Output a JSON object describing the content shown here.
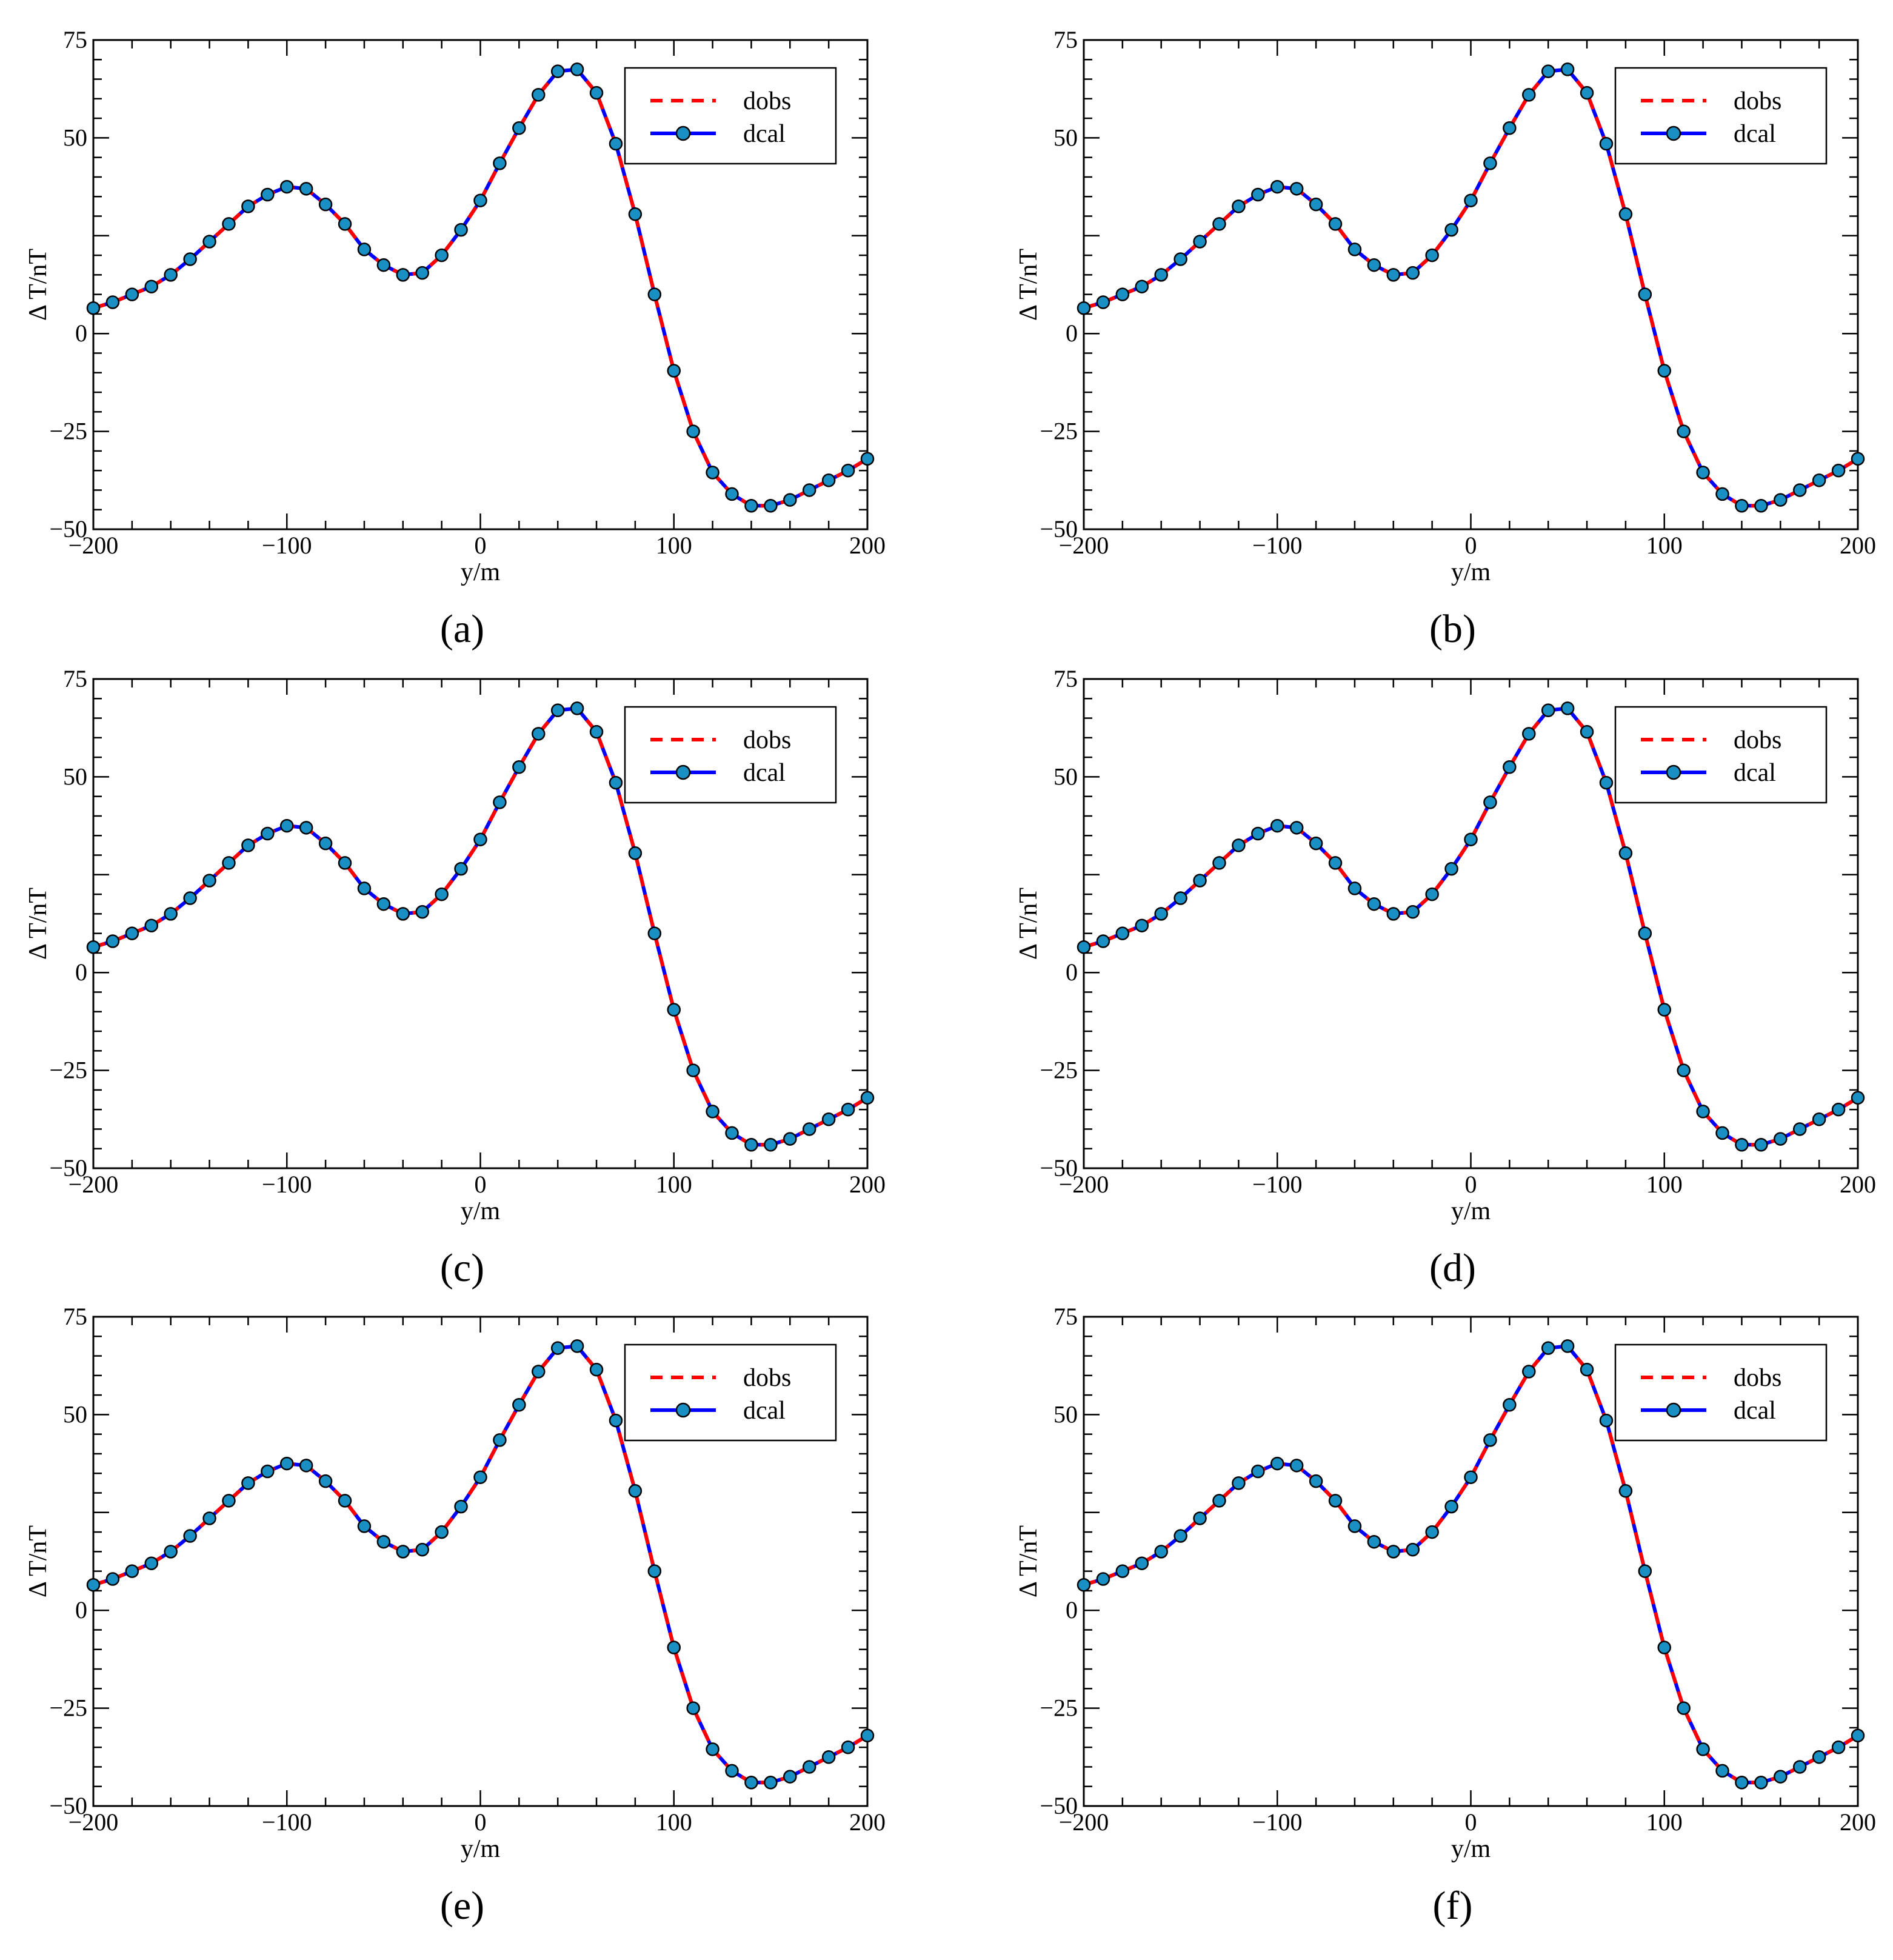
{
  "chart_data": [
    {
      "panel_label": "(a)",
      "type": "line",
      "xlabel": "y/m",
      "ylabel": "Δ T/nT",
      "xlim": [
        -200,
        200
      ],
      "ylim": [
        -50,
        75
      ],
      "xticks": [
        -200,
        -100,
        0,
        100,
        200
      ],
      "yticks": [
        -50,
        -25,
        0,
        25,
        50,
        75
      ],
      "ytick_labels": [
        "−50",
        "−25",
        "0",
        "",
        "50",
        "75"
      ],
      "xtick_labels": [
        "−200",
        "−100",
        "0",
        "100",
        "200"
      ],
      "legend_position": "top-right",
      "x": [
        -200,
        -190,
        -180,
        -170,
        -160,
        -150,
        -140,
        -130,
        -120,
        -110,
        -100,
        -90,
        -80,
        -70,
        -60,
        -50,
        -40,
        -30,
        -20,
        -10,
        0,
        10,
        20,
        30,
        40,
        50,
        60,
        70,
        80,
        90,
        100,
        110,
        120,
        130,
        140,
        150,
        160,
        170,
        180,
        190,
        200
      ],
      "series": [
        {
          "name": "dobs",
          "style": "dashed",
          "color": "#ff0000",
          "values": [
            6.5,
            8,
            10,
            12,
            15,
            19,
            23.5,
            28,
            32.5,
            35.5,
            37.5,
            37,
            33,
            28,
            21.5,
            17.5,
            15,
            15.5,
            20,
            26.5,
            34,
            43.5,
            52.5,
            61,
            67,
            67.5,
            61.5,
            48.5,
            30.5,
            10,
            -9.5,
            -25,
            -35.5,
            -41,
            -44,
            -44,
            -42.5,
            -40,
            -37.5,
            -35,
            -32
          ]
        },
        {
          "name": "dcal",
          "style": "solid-markers",
          "color": "#0000ff",
          "marker_color": "#1a8fc4",
          "values": [
            6.5,
            8,
            10,
            12,
            15,
            19,
            23.5,
            28,
            32.5,
            35.5,
            37.5,
            37,
            33,
            28,
            21.5,
            17.5,
            15,
            15.5,
            20,
            26.5,
            34,
            43.5,
            52.5,
            61,
            67,
            67.5,
            61.5,
            48.5,
            30.5,
            10,
            -9.5,
            -25,
            -35.5,
            -41,
            -44,
            -44,
            -42.5,
            -40,
            -37.5,
            -35,
            -32
          ]
        }
      ]
    },
    {
      "panel_label": "(b)",
      "type": "line",
      "xlabel": "y/m",
      "ylabel": "Δ T/nT",
      "xlim": [
        -200,
        200
      ],
      "ylim": [
        -50,
        75
      ],
      "xticks": [
        -200,
        -100,
        0,
        100,
        200
      ],
      "yticks": [
        -50,
        -25,
        0,
        25,
        50,
        75
      ],
      "ytick_labels": [
        "−50",
        "−25",
        "0",
        "",
        "50",
        "75"
      ],
      "xtick_labels": [
        "−200",
        "−100",
        "0",
        "100",
        "200"
      ],
      "legend_position": "top-right",
      "x": [
        -200,
        -190,
        -180,
        -170,
        -160,
        -150,
        -140,
        -130,
        -120,
        -110,
        -100,
        -90,
        -80,
        -70,
        -60,
        -50,
        -40,
        -30,
        -20,
        -10,
        0,
        10,
        20,
        30,
        40,
        50,
        60,
        70,
        80,
        90,
        100,
        110,
        120,
        130,
        140,
        150,
        160,
        170,
        180,
        190,
        200
      ],
      "series": [
        {
          "name": "dobs",
          "style": "dashed",
          "color": "#ff0000",
          "values": [
            6.5,
            8,
            10,
            12,
            15,
            19,
            23.5,
            28,
            32.5,
            35.5,
            37.5,
            37,
            33,
            28,
            21.5,
            17.5,
            15,
            15.5,
            20,
            26.5,
            34,
            43.5,
            52.5,
            61,
            67,
            67.5,
            61.5,
            48.5,
            30.5,
            10,
            -9.5,
            -25,
            -35.5,
            -41,
            -44,
            -44,
            -42.5,
            -40,
            -37.5,
            -35,
            -32
          ]
        },
        {
          "name": "dcal",
          "style": "solid-markers",
          "color": "#0000ff",
          "marker_color": "#1a8fc4",
          "values": [
            6.5,
            8,
            10,
            12,
            15,
            19,
            23.5,
            28,
            32.5,
            35.5,
            37.5,
            37,
            33,
            28,
            21.5,
            17.5,
            15,
            15.5,
            20,
            26.5,
            34,
            43.5,
            52.5,
            61,
            67,
            67.5,
            61.5,
            48.5,
            30.5,
            10,
            -9.5,
            -25,
            -35.5,
            -41,
            -44,
            -44,
            -42.5,
            -40,
            -37.5,
            -35,
            -32
          ]
        }
      ]
    },
    {
      "panel_label": "(c)",
      "type": "line",
      "xlabel": "y/m",
      "ylabel": "Δ T/nT",
      "xlim": [
        -200,
        200
      ],
      "ylim": [
        -50,
        75
      ],
      "xticks": [
        -200,
        -100,
        0,
        100,
        200
      ],
      "yticks": [
        -50,
        -25,
        0,
        25,
        50,
        75
      ],
      "ytick_labels": [
        "−50",
        "−25",
        "0",
        "",
        "50",
        "75"
      ],
      "xtick_labels": [
        "−200",
        "−100",
        "0",
        "100",
        "200"
      ],
      "legend_position": "top-right",
      "x": [
        -200,
        -190,
        -180,
        -170,
        -160,
        -150,
        -140,
        -130,
        -120,
        -110,
        -100,
        -90,
        -80,
        -70,
        -60,
        -50,
        -40,
        -30,
        -20,
        -10,
        0,
        10,
        20,
        30,
        40,
        50,
        60,
        70,
        80,
        90,
        100,
        110,
        120,
        130,
        140,
        150,
        160,
        170,
        180,
        190,
        200
      ],
      "series": [
        {
          "name": "dobs",
          "style": "dashed",
          "color": "#ff0000",
          "values": [
            6.5,
            8,
            10,
            12,
            15,
            19,
            23.5,
            28,
            32.5,
            35.5,
            37.5,
            37,
            33,
            28,
            21.5,
            17.5,
            15,
            15.5,
            20,
            26.5,
            34,
            43.5,
            52.5,
            61,
            67,
            67.5,
            61.5,
            48.5,
            30.5,
            10,
            -9.5,
            -25,
            -35.5,
            -41,
            -44,
            -44,
            -42.5,
            -40,
            -37.5,
            -35,
            -32
          ]
        },
        {
          "name": "dcal",
          "style": "solid-markers",
          "color": "#0000ff",
          "marker_color": "#1a8fc4",
          "values": [
            6.5,
            8,
            10,
            12,
            15,
            19,
            23.5,
            28,
            32.5,
            35.5,
            37.5,
            37,
            33,
            28,
            21.5,
            17.5,
            15,
            15.5,
            20,
            26.5,
            34,
            43.5,
            52.5,
            61,
            67,
            67.5,
            61.5,
            48.5,
            30.5,
            10,
            -9.5,
            -25,
            -35.5,
            -41,
            -44,
            -44,
            -42.5,
            -40,
            -37.5,
            -35,
            -32
          ]
        }
      ]
    },
    {
      "panel_label": "(d)",
      "type": "line",
      "xlabel": "y/m",
      "ylabel": "Δ T/nT",
      "xlim": [
        -200,
        200
      ],
      "ylim": [
        -50,
        75
      ],
      "xticks": [
        -200,
        -100,
        0,
        100,
        200
      ],
      "yticks": [
        -50,
        -25,
        0,
        25,
        50,
        75
      ],
      "ytick_labels": [
        "−50",
        "−25",
        "0",
        "",
        "50",
        "75"
      ],
      "xtick_labels": [
        "−200",
        "−100",
        "0",
        "100",
        "200"
      ],
      "legend_position": "top-right",
      "x": [
        -200,
        -190,
        -180,
        -170,
        -160,
        -150,
        -140,
        -130,
        -120,
        -110,
        -100,
        -90,
        -80,
        -70,
        -60,
        -50,
        -40,
        -30,
        -20,
        -10,
        0,
        10,
        20,
        30,
        40,
        50,
        60,
        70,
        80,
        90,
        100,
        110,
        120,
        130,
        140,
        150,
        160,
        170,
        180,
        190,
        200
      ],
      "series": [
        {
          "name": "dobs",
          "style": "dashed",
          "color": "#ff0000",
          "values": [
            6.5,
            8,
            10,
            12,
            15,
            19,
            23.5,
            28,
            32.5,
            35.5,
            37.5,
            37,
            33,
            28,
            21.5,
            17.5,
            15,
            15.5,
            20,
            26.5,
            34,
            43.5,
            52.5,
            61,
            67,
            67.5,
            61.5,
            48.5,
            30.5,
            10,
            -9.5,
            -25,
            -35.5,
            -41,
            -44,
            -44,
            -42.5,
            -40,
            -37.5,
            -35,
            -32
          ]
        },
        {
          "name": "dcal",
          "style": "solid-markers",
          "color": "#0000ff",
          "marker_color": "#1a8fc4",
          "values": [
            6.5,
            8,
            10,
            12,
            15,
            19,
            23.5,
            28,
            32.5,
            35.5,
            37.5,
            37,
            33,
            28,
            21.5,
            17.5,
            15,
            15.5,
            20,
            26.5,
            34,
            43.5,
            52.5,
            61,
            67,
            67.5,
            61.5,
            48.5,
            30.5,
            10,
            -9.5,
            -25,
            -35.5,
            -41,
            -44,
            -44,
            -42.5,
            -40,
            -37.5,
            -35,
            -32
          ]
        }
      ]
    },
    {
      "panel_label": "(e)",
      "type": "line",
      "xlabel": "y/m",
      "ylabel": "Δ T/nT",
      "xlim": [
        -200,
        200
      ],
      "ylim": [
        -50,
        75
      ],
      "xticks": [
        -200,
        -100,
        0,
        100,
        200
      ],
      "yticks": [
        -50,
        -25,
        0,
        25,
        50,
        75
      ],
      "ytick_labels": [
        "−50",
        "−25",
        "0",
        "",
        "50",
        "75"
      ],
      "xtick_labels": [
        "−200",
        "−100",
        "0",
        "100",
        "200"
      ],
      "legend_position": "top-right",
      "x": [
        -200,
        -190,
        -180,
        -170,
        -160,
        -150,
        -140,
        -130,
        -120,
        -110,
        -100,
        -90,
        -80,
        -70,
        -60,
        -50,
        -40,
        -30,
        -20,
        -10,
        0,
        10,
        20,
        30,
        40,
        50,
        60,
        70,
        80,
        90,
        100,
        110,
        120,
        130,
        140,
        150,
        160,
        170,
        180,
        190,
        200
      ],
      "series": [
        {
          "name": "dobs",
          "style": "dashed",
          "color": "#ff0000",
          "values": [
            6.5,
            8,
            10,
            12,
            15,
            19,
            23.5,
            28,
            32.5,
            35.5,
            37.5,
            37,
            33,
            28,
            21.5,
            17.5,
            15,
            15.5,
            20,
            26.5,
            34,
            43.5,
            52.5,
            61,
            67,
            67.5,
            61.5,
            48.5,
            30.5,
            10,
            -9.5,
            -25,
            -35.5,
            -41,
            -44,
            -44,
            -42.5,
            -40,
            -37.5,
            -35,
            -32
          ]
        },
        {
          "name": "dcal",
          "style": "solid-markers",
          "color": "#0000ff",
          "marker_color": "#1a8fc4",
          "values": [
            6.5,
            8,
            10,
            12,
            15,
            19,
            23.5,
            28,
            32.5,
            35.5,
            37.5,
            37,
            33,
            28,
            21.5,
            17.5,
            15,
            15.5,
            20,
            26.5,
            34,
            43.5,
            52.5,
            61,
            67,
            67.5,
            61.5,
            48.5,
            30.5,
            10,
            -9.5,
            -25,
            -35.5,
            -41,
            -44,
            -44,
            -42.5,
            -40,
            -37.5,
            -35,
            -32
          ]
        }
      ]
    },
    {
      "panel_label": "(f)",
      "type": "line",
      "xlabel": "y/m",
      "ylabel": "Δ T/nT",
      "xlim": [
        -200,
        200
      ],
      "ylim": [
        -50,
        75
      ],
      "xticks": [
        -200,
        -100,
        0,
        100,
        200
      ],
      "yticks": [
        -50,
        -25,
        0,
        25,
        50,
        75
      ],
      "ytick_labels": [
        "−50",
        "−25",
        "0",
        "",
        "50",
        "75"
      ],
      "xtick_labels": [
        "−200",
        "−100",
        "0",
        "100",
        "200"
      ],
      "legend_position": "top-right",
      "x": [
        -200,
        -190,
        -180,
        -170,
        -160,
        -150,
        -140,
        -130,
        -120,
        -110,
        -100,
        -90,
        -80,
        -70,
        -60,
        -50,
        -40,
        -30,
        -20,
        -10,
        0,
        10,
        20,
        30,
        40,
        50,
        60,
        70,
        80,
        90,
        100,
        110,
        120,
        130,
        140,
        150,
        160,
        170,
        180,
        190,
        200
      ],
      "series": [
        {
          "name": "dobs",
          "style": "dashed",
          "color": "#ff0000",
          "values": [
            6.5,
            8,
            10,
            12,
            15,
            19,
            23.5,
            28,
            32.5,
            35.5,
            37.5,
            37,
            33,
            28,
            21.5,
            17.5,
            15,
            15.5,
            20,
            26.5,
            34,
            43.5,
            52.5,
            61,
            67,
            67.5,
            61.5,
            48.5,
            30.5,
            10,
            -9.5,
            -25,
            -35.5,
            -41,
            -44,
            -44,
            -42.5,
            -40,
            -37.5,
            -35,
            -32
          ]
        },
        {
          "name": "dcal",
          "style": "solid-markers",
          "color": "#0000ff",
          "marker_color": "#1a8fc4",
          "values": [
            6.5,
            8,
            10,
            12,
            15,
            19,
            23.5,
            28,
            32.5,
            35.5,
            37.5,
            37,
            33,
            28,
            21.5,
            17.5,
            15,
            15.5,
            20,
            26.5,
            34,
            43.5,
            52.5,
            61,
            67,
            67.5,
            61.5,
            48.5,
            30.5,
            10,
            -9.5,
            -25,
            -35.5,
            -41,
            -44,
            -44,
            -42.5,
            -40,
            -37.5,
            -35,
            -32
          ]
        }
      ]
    }
  ]
}
